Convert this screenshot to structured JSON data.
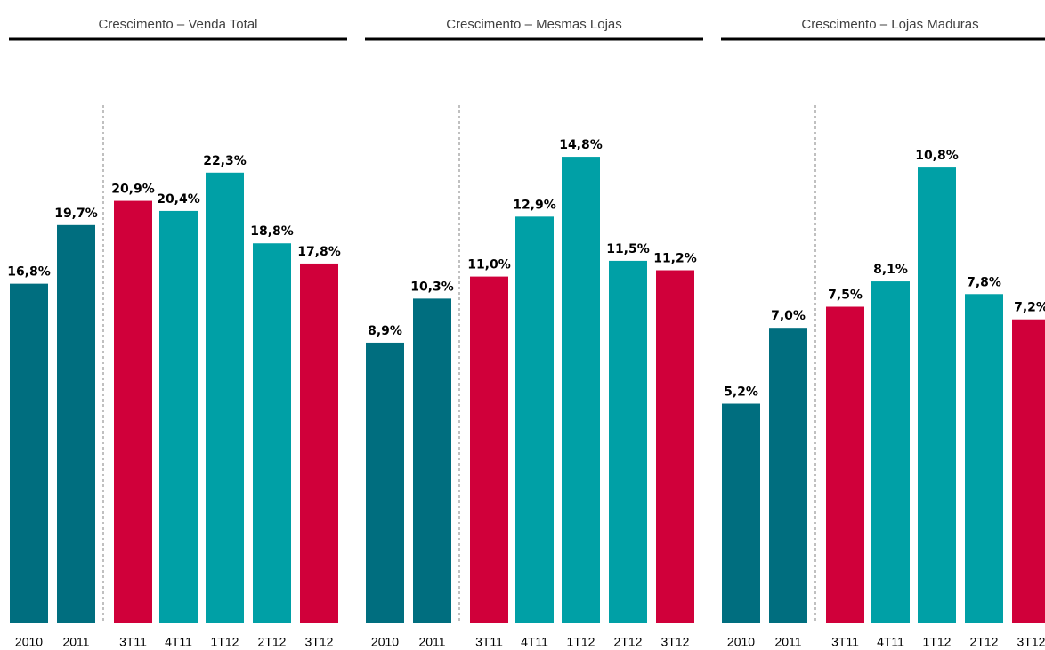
{
  "chart_data": [
    {
      "type": "bar",
      "title": "Crescimento – Venda Total",
      "categories": [
        "2010",
        "2011",
        "3T11",
        "4T11",
        "1T12",
        "2T12",
        "3T12"
      ],
      "values": [
        16.8,
        19.7,
        20.9,
        20.4,
        22.3,
        18.8,
        17.8
      ],
      "value_labels": [
        "16,8%",
        "19,7%",
        "20,9%",
        "20,4%",
        "22,3%",
        "18,8%",
        "17,8%"
      ],
      "colors": [
        "#006e7f",
        "#006e7f",
        "#d0003a",
        "#00a0a6",
        "#00a0a6",
        "#00a0a6",
        "#d0003a"
      ]
    },
    {
      "type": "bar",
      "title": "Crescimento – Mesmas Lojas",
      "categories": [
        "2010",
        "2011",
        "3T11",
        "4T11",
        "1T12",
        "2T12",
        "3T12"
      ],
      "values": [
        8.9,
        10.3,
        11.0,
        12.9,
        14.8,
        11.5,
        11.2
      ],
      "value_labels": [
        "8,9%",
        "10,3%",
        "11,0%",
        "12,9%",
        "14,8%",
        "11,5%",
        "11,2%"
      ],
      "colors": [
        "#006e7f",
        "#006e7f",
        "#d0003a",
        "#00a0a6",
        "#00a0a6",
        "#00a0a6",
        "#d0003a"
      ]
    },
    {
      "type": "bar",
      "title": "Crescimento – Lojas Maduras",
      "categories": [
        "2010",
        "2011",
        "3T11",
        "4T11",
        "1T12",
        "2T12",
        "3T12"
      ],
      "values": [
        5.2,
        7.0,
        7.5,
        8.1,
        10.8,
        7.8,
        7.2
      ],
      "value_labels": [
        "5,2%",
        "7,0%",
        "7,5%",
        "8,1%",
        "10,8%",
        "7,8%",
        "7,2%"
      ],
      "colors": [
        "#006e7f",
        "#006e7f",
        "#d0003a",
        "#00a0a6",
        "#00a0a6",
        "#00a0a6",
        "#d0003a"
      ]
    }
  ]
}
